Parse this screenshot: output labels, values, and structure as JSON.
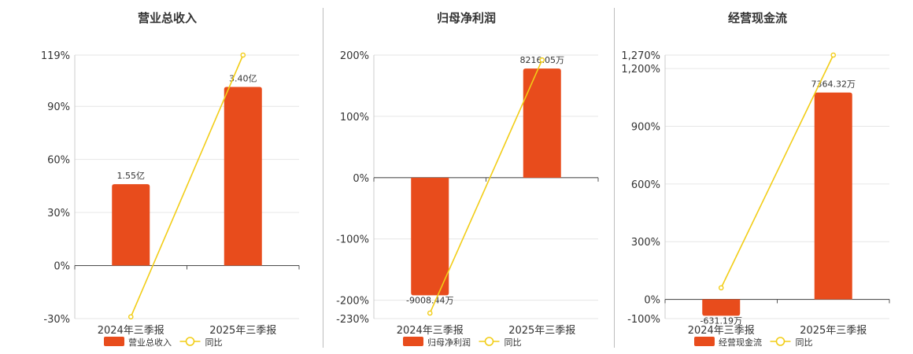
{
  "colors": {
    "bar": "#e84c1c",
    "line": "#f2cd17",
    "grid": "#e6e6e6",
    "axis": "#555555"
  },
  "legend_labels": {
    "line": "同比"
  },
  "chart_data": [
    {
      "type": "bar",
      "title": "营业总收入",
      "categories": [
        "2024年三季报",
        "2025年三季报"
      ],
      "series": [
        {
          "name": "营业总收入",
          "type": "bar",
          "values": [
            46,
            101
          ],
          "labels": [
            "1.55亿",
            "3.40亿"
          ]
        },
        {
          "name": "同比",
          "type": "line",
          "values": [
            -29,
            119
          ]
        }
      ],
      "yticks": [
        "119%",
        "90%",
        "60%",
        "30%",
        "0%",
        "-30%"
      ],
      "ytick_values": [
        119,
        90,
        60,
        30,
        0,
        -30
      ],
      "ylim": [
        -30,
        119
      ],
      "legend": "bottom"
    },
    {
      "type": "bar",
      "title": "归母净利润",
      "categories": [
        "2024年三季报",
        "2025年三季报"
      ],
      "series": [
        {
          "name": "归母净利润",
          "type": "bar",
          "values": [
            -192,
            178
          ],
          "labels": [
            "-9008.44万",
            "8216.05万"
          ]
        },
        {
          "name": "同比",
          "type": "line",
          "values": [
            -221,
            192
          ]
        }
      ],
      "yticks": [
        "200%",
        "100%",
        "0%",
        "-100%",
        "-200%",
        "-230%"
      ],
      "ytick_values": [
        200,
        100,
        0,
        -100,
        -200,
        -230
      ],
      "ylim": [
        -230,
        200
      ],
      "legend": "bottom"
    },
    {
      "type": "bar",
      "title": "经营现金流",
      "categories": [
        "2024年三季报",
        "2025年三季报"
      ],
      "series": [
        {
          "name": "经营现金流",
          "type": "bar",
          "values": [
            -85,
            1075
          ],
          "labels": [
            "-631.19万",
            "7364.32万"
          ]
        },
        {
          "name": "同比",
          "type": "line",
          "values": [
            60,
            1270
          ]
        }
      ],
      "yticks": [
        "1,270%",
        "1,200%",
        "900%",
        "600%",
        "300%",
        "0%",
        "-100%"
      ],
      "ytick_values": [
        1270,
        1200,
        900,
        600,
        300,
        0,
        -100
      ],
      "ylim": [
        -100,
        1270
      ],
      "legend": "bottom"
    }
  ]
}
